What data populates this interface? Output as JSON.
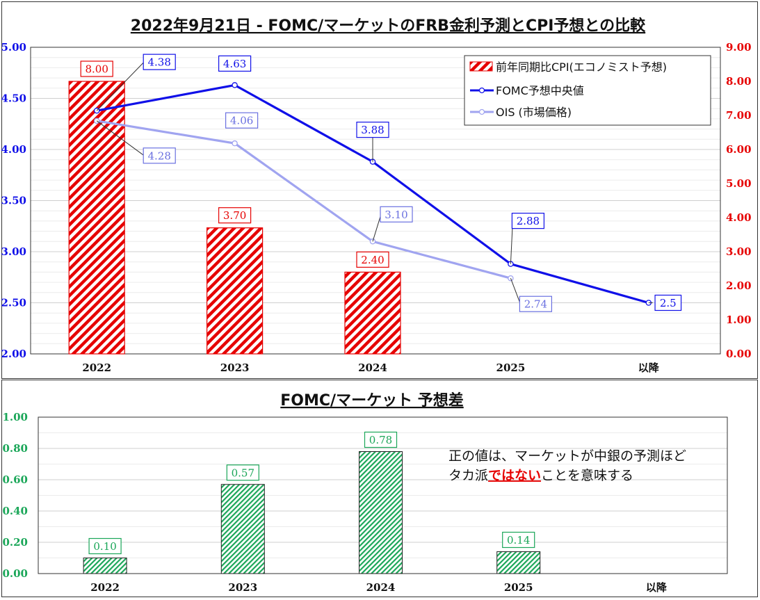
{
  "colors": {
    "cpi": "#e60000",
    "fomc": "#1010e8",
    "ois": "#a0a4f0",
    "diff": "#1aa658",
    "left_axis": "#1010e8",
    "right_axis": "#e60000",
    "highlight": "#e60000"
  },
  "chart_data": [
    {
      "type": "bar",
      "title": "2022年9月21日 - FOMC/マーケットのFRB金利予測とCPI予想との比較",
      "categories": [
        "2022",
        "2023",
        "2024",
        "2025",
        "以降"
      ],
      "left_axis": {
        "ylim": [
          2.0,
          5.0
        ],
        "ticks": [
          "2.00",
          "2.50",
          "3.00",
          "3.50",
          "4.00",
          "4.50",
          "5.00"
        ]
      },
      "right_axis": {
        "ylim": [
          0.0,
          9.0
        ],
        "ticks": [
          "0.00",
          "1.00",
          "2.00",
          "3.00",
          "4.00",
          "5.00",
          "6.00",
          "7.00",
          "8.00",
          "9.00"
        ]
      },
      "grid": true,
      "legend": "top-right",
      "series": [
        {
          "name": "前年同期比CPI(エコノミスト予想)",
          "kind": "bar",
          "axis": "right",
          "values": [
            8.0,
            3.7,
            2.4,
            null,
            null
          ],
          "labels": [
            "8.00",
            "3.70",
            "2.40",
            null,
            null
          ]
        },
        {
          "name": "FOMC予想中央値",
          "kind": "line",
          "axis": "left",
          "values": [
            4.38,
            4.63,
            3.88,
            2.88,
            2.5
          ],
          "labels": [
            "4.38",
            "4.63",
            "3.88",
            "2.88",
            "2.5"
          ]
        },
        {
          "name": "OIS (市場価格)",
          "kind": "line",
          "axis": "left",
          "values": [
            4.28,
            4.06,
            3.1,
            2.74,
            null
          ],
          "labels": [
            "4.28",
            "4.06",
            "3.10",
            "2.74",
            null
          ]
        }
      ]
    },
    {
      "type": "bar",
      "title": "FOMC/マーケット 予想差",
      "categories": [
        "2022",
        "2023",
        "2024",
        "2025",
        "以降"
      ],
      "ylim": [
        0.0,
        1.0
      ],
      "ticks": [
        "0.00",
        "0.20",
        "0.40",
        "0.60",
        "0.80",
        "1.00"
      ],
      "series": [
        {
          "kind": "bar",
          "values": [
            0.1,
            0.57,
            0.78,
            0.14,
            null
          ],
          "labels": [
            "0.10",
            "0.57",
            "0.78",
            "0.14",
            null
          ]
        }
      ],
      "annotation": {
        "line1": "正の値は、マーケットが中銀の予測ほど",
        "line2_prefix": "タカ派",
        "line2_highlight": "ではない",
        "line2_suffix": "ことを意味する"
      }
    }
  ]
}
